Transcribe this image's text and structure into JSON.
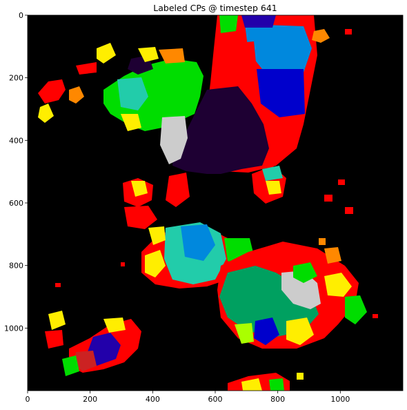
{
  "title": "Labeled CPs @ timestep 641",
  "colors": {
    "background": "#000000",
    "boundary_red": "#ff0000",
    "palette": [
      "#00dd00",
      "#0088dd",
      "#2200aa",
      "#1e0033",
      "#ff0000",
      "#ffee00",
      "#ff8800",
      "#00a060",
      "#cccccc",
      "#22ccaa",
      "#aaff00",
      "#cc2222",
      "#ff66aa",
      "#0000cc"
    ]
  },
  "x_axis": {
    "ticks": [
      "0",
      "200",
      "400",
      "600",
      "800",
      "1000"
    ],
    "range": [
      0,
      1200
    ]
  },
  "y_axis": {
    "ticks": [
      "0",
      "200",
      "400",
      "600",
      "800",
      "1000"
    ],
    "range": [
      0,
      1200
    ],
    "inverted": true
  },
  "image_description_present": false
}
